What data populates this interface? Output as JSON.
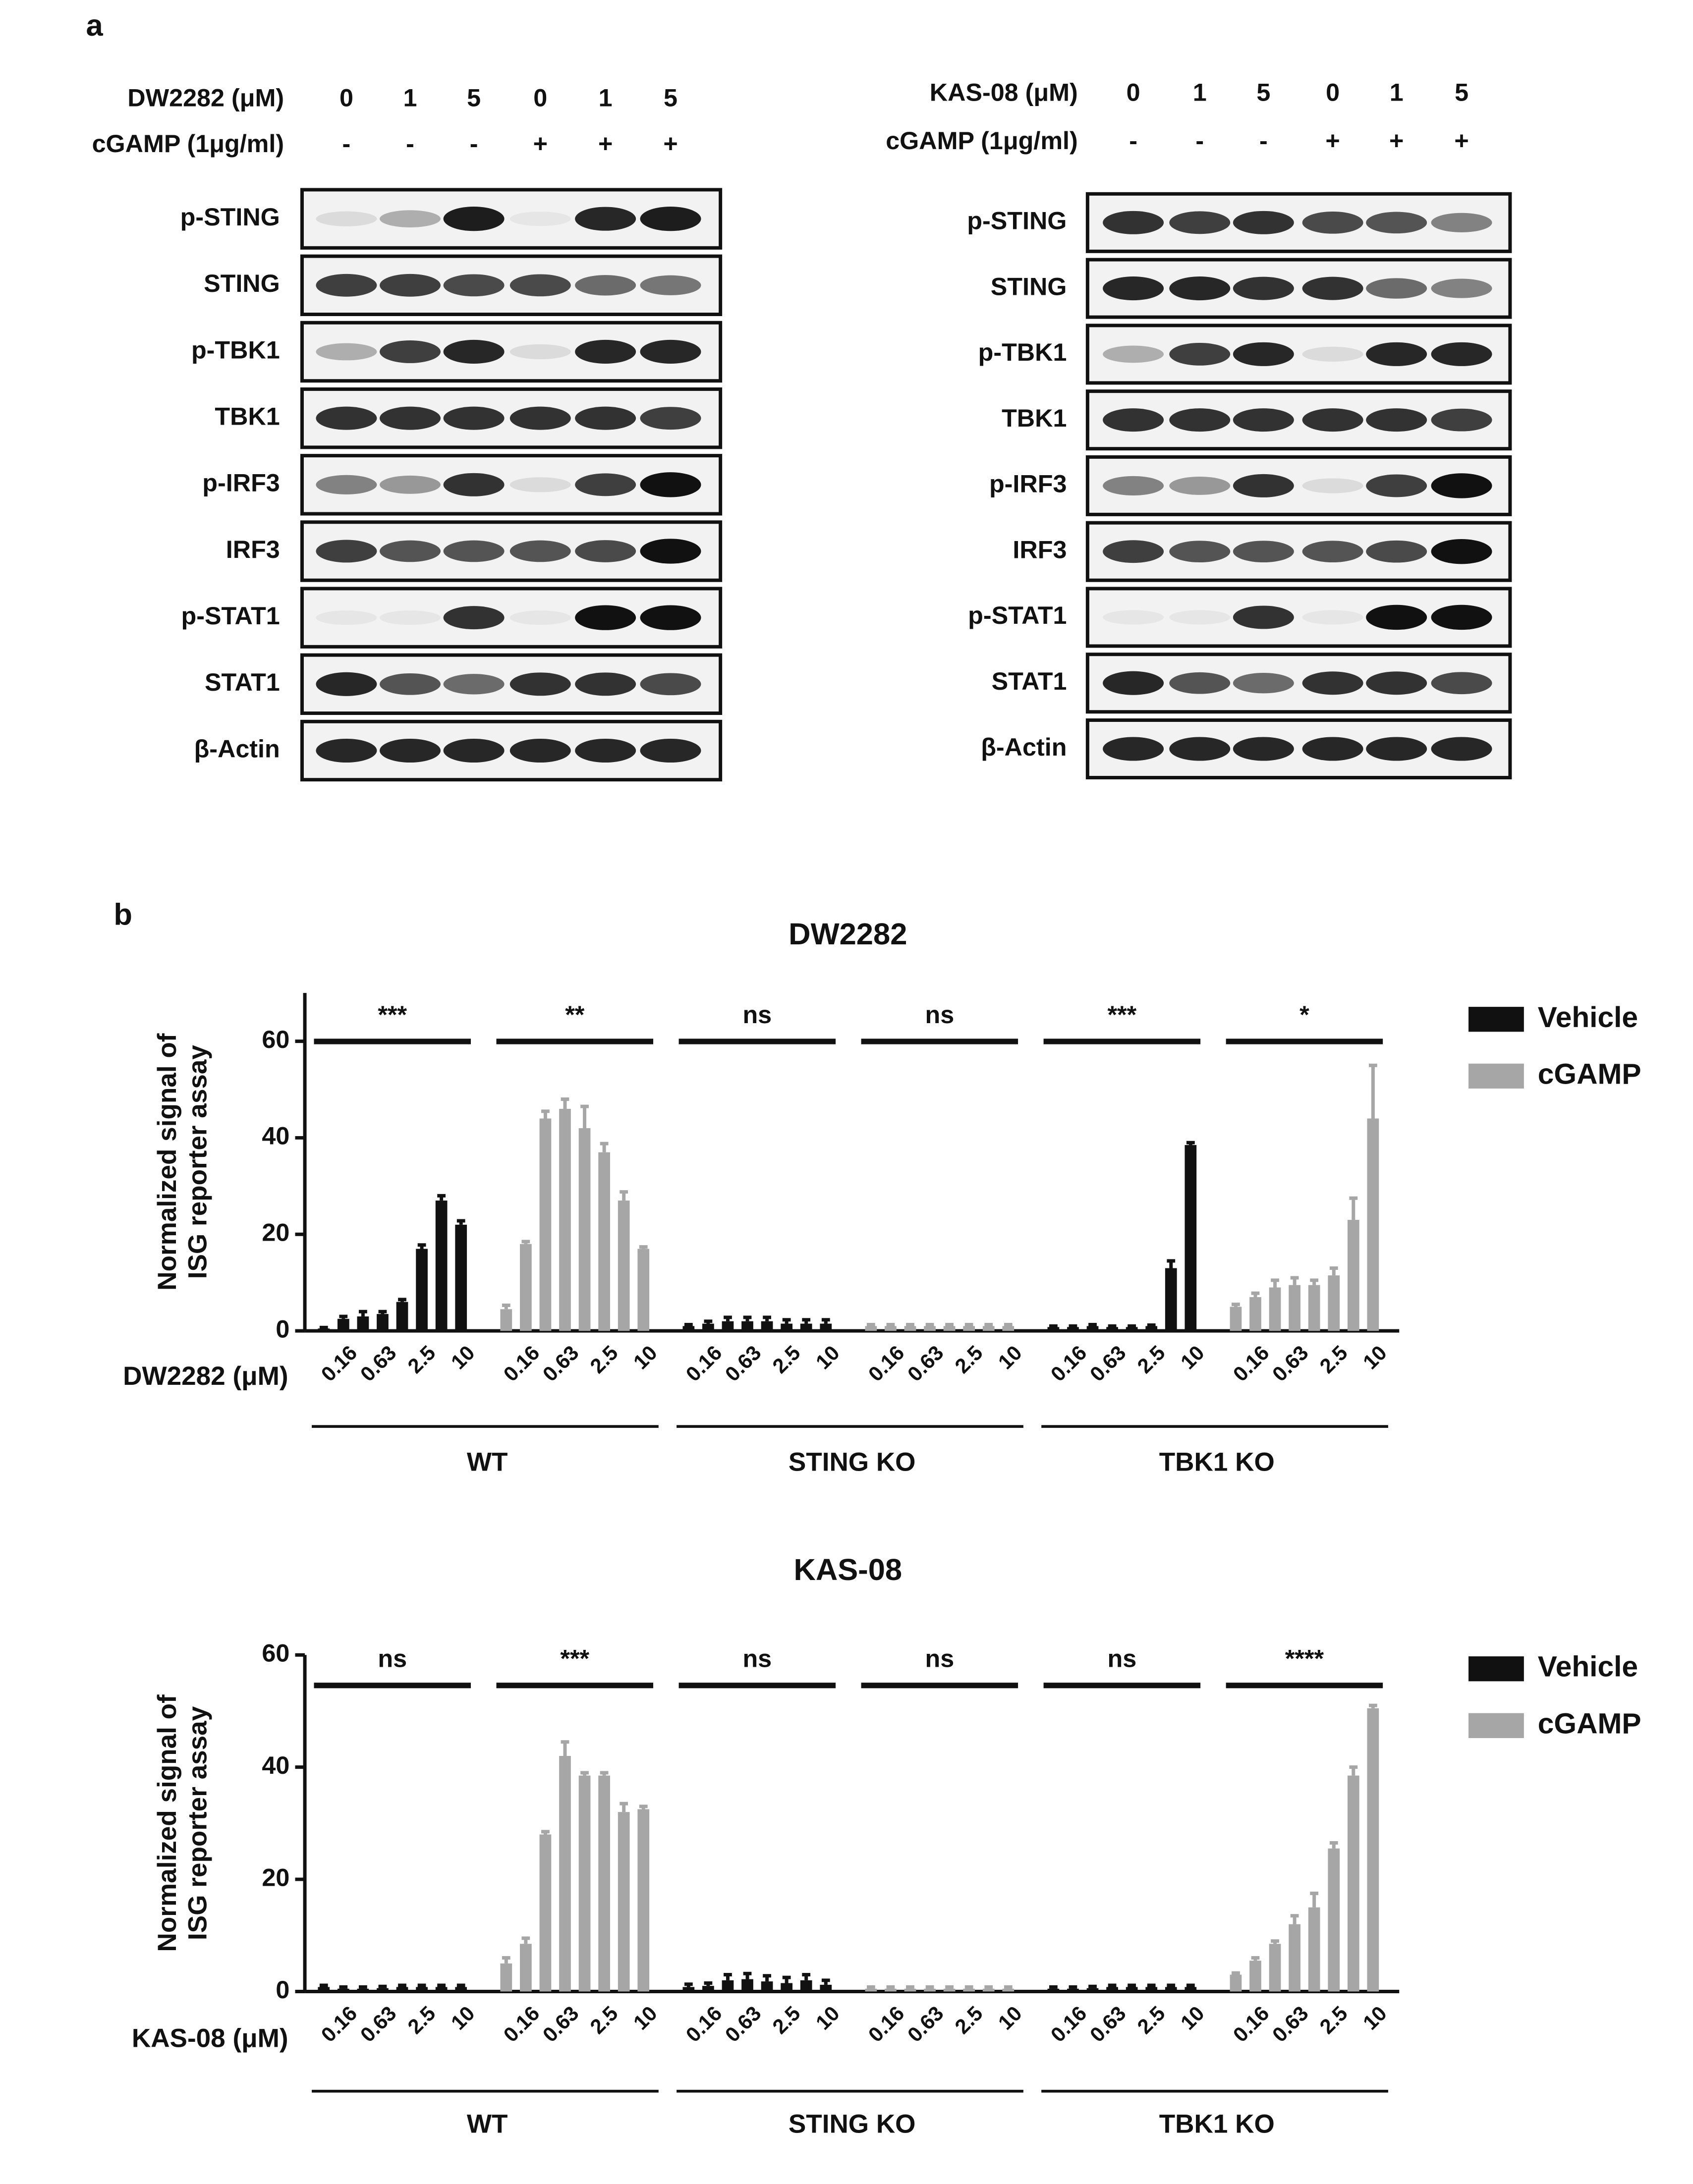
{
  "panel_a": {
    "label": "a",
    "blots": [
      {
        "treatments": [
          {
            "label": "DW2282 (μM)",
            "values": [
              "0",
              "1",
              "5",
              "0",
              "1",
              "5"
            ]
          },
          {
            "label": "cGAMP (1μg/ml)",
            "values": [
              "-",
              "-",
              "-",
              "+",
              "+",
              "+"
            ]
          }
        ],
        "rows": [
          "p-STING",
          "STING",
          "p-TBK1",
          "TBK1",
          "p-IRF3",
          "IRF3",
          "p-STAT1",
          "STAT1",
          "β-Actin"
        ]
      },
      {
        "treatments": [
          {
            "label": "KAS-08 (μM)",
            "values": [
              "0",
              "1",
              "5",
              "0",
              "1",
              "5"
            ]
          },
          {
            "label": "cGAMP (1μg/ml)",
            "values": [
              "-",
              "-",
              "-",
              "+",
              "+",
              "+"
            ]
          }
        ],
        "rows": [
          "p-STING",
          "STING",
          "p-TBK1",
          "TBK1",
          "p-IRF3",
          "IRF3",
          "p-STAT1",
          "STAT1",
          "β-Actin"
        ]
      }
    ]
  },
  "panel_b_label": "b",
  "chart_data": [
    {
      "type": "bar",
      "title": "DW2282",
      "y_label": [
        "Normalized signal of",
        "ISG reporter assay"
      ],
      "x_label": "DW2282 (μM)",
      "ylim": [
        0,
        70
      ],
      "yticks": [
        0,
        20,
        40,
        60
      ],
      "categories": [
        null,
        "0.16",
        null,
        "0.63",
        null,
        "2.5",
        null,
        "10"
      ],
      "series": [
        {
          "name": "Vehicle",
          "color": "#111111"
        },
        {
          "name": "cGAMP",
          "color": "#a6a6a6"
        }
      ],
      "groups": [
        {
          "label": "WT",
          "sets": [
            {
              "values": [
                0.5,
                2.5,
                3,
                3.5,
                6,
                17,
                27,
                22
              ],
              "errors": [
                0.2,
                0.5,
                1,
                0.5,
                0.5,
                0.8,
                1,
                0.8
              ],
              "significance": "***"
            },
            {
              "values": [
                4.5,
                18,
                44,
                46,
                42,
                37,
                27,
                17
              ],
              "errors": [
                0.8,
                0.5,
                1.5,
                2,
                4.5,
                1.8,
                1.8,
                0.4
              ],
              "significance": "**"
            }
          ]
        },
        {
          "label": "STING KO",
          "sets": [
            {
              "values": [
                1,
                1.5,
                2,
                2,
                2,
                1.5,
                1.5,
                1.5
              ],
              "errors": [
                0.3,
                0.5,
                0.8,
                0.8,
                0.8,
                0.8,
                0.8,
                0.8
              ],
              "significance": "ns"
            },
            {
              "values": [
                1,
                1,
                1,
                1,
                1,
                1,
                1,
                1
              ],
              "errors": [
                0.3,
                0.3,
                0.3,
                0.3,
                0.3,
                0.3,
                0.3,
                0.3
              ],
              "significance": "ns"
            }
          ]
        },
        {
          "label": "TBK1 KO",
          "sets": [
            {
              "values": [
                0.8,
                0.8,
                1,
                0.8,
                0.8,
                1,
                13,
                38.5
              ],
              "errors": [
                0.2,
                0.2,
                0.3,
                0.2,
                0.2,
                0.2,
                1.5,
                0.5
              ],
              "significance": "***"
            },
            {
              "values": [
                5,
                7,
                9,
                9.5,
                9.5,
                11.5,
                23,
                44
              ],
              "errors": [
                0.5,
                0.8,
                1.5,
                1.5,
                1,
                1.5,
                4.5,
                11
              ],
              "significance": "*"
            }
          ]
        }
      ]
    },
    {
      "type": "bar",
      "title": "KAS-08",
      "y_label": [
        "Normalized signal of",
        "ISG reporter assay"
      ],
      "x_label": "KAS-08 (μM)",
      "ylim": [
        0,
        60
      ],
      "yticks": [
        0,
        20,
        40,
        60
      ],
      "categories": [
        null,
        "0.16",
        null,
        "0.63",
        null,
        "2.5",
        null,
        "10"
      ],
      "series": [
        {
          "name": "Vehicle",
          "color": "#111111"
        },
        {
          "name": "cGAMP",
          "color": "#a6a6a6"
        }
      ],
      "groups": [
        {
          "label": "WT",
          "sets": [
            {
              "values": [
                0.8,
                0.5,
                0.5,
                0.6,
                0.8,
                0.8,
                0.8,
                0.8
              ],
              "errors": [
                0.3,
                0.3,
                0.3,
                0.3,
                0.3,
                0.3,
                0.3,
                0.3
              ],
              "significance": "ns"
            },
            {
              "values": [
                5,
                8.5,
                28,
                42,
                38.5,
                38.5,
                32,
                32.5
              ],
              "errors": [
                1,
                1,
                0.5,
                2.5,
                0.5,
                0.5,
                1.5,
                0.5
              ],
              "significance": "***"
            }
          ]
        },
        {
          "label": "STING KO",
          "sets": [
            {
              "values": [
                0.8,
                1,
                2,
                2.2,
                1.8,
                1.5,
                2,
                1.2
              ],
              "errors": [
                0.5,
                0.5,
                1,
                1,
                1,
                1,
                1,
                0.8
              ],
              "significance": "ns"
            },
            {
              "values": [
                0.5,
                0.5,
                0.5,
                0.5,
                0.5,
                0.5,
                0.5,
                0.5
              ],
              "errors": [
                0.3,
                0.3,
                0.3,
                0.3,
                0.3,
                0.3,
                0.3,
                0.3
              ],
              "significance": "ns"
            }
          ]
        },
        {
          "label": "TBK1 KO",
          "sets": [
            {
              "values": [
                0.5,
                0.5,
                0.6,
                0.8,
                0.8,
                0.8,
                0.8,
                0.8
              ],
              "errors": [
                0.3,
                0.3,
                0.3,
                0.3,
                0.3,
                0.3,
                0.3,
                0.3
              ],
              "significance": "ns"
            },
            {
              "values": [
                3,
                5.5,
                8.5,
                12,
                15,
                25.5,
                38.5,
                50.5
              ],
              "errors": [
                0.3,
                0.5,
                0.5,
                1.5,
                2.5,
                1,
                1.5,
                0.5
              ],
              "significance": "****"
            }
          ]
        }
      ]
    }
  ]
}
